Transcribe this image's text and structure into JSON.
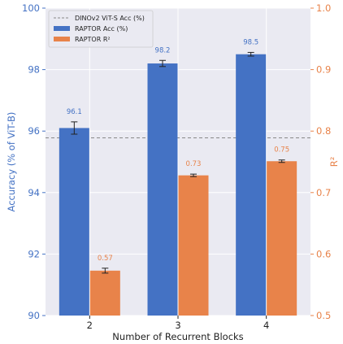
{
  "chart_data": {
    "type": "bar",
    "categories": [
      "2",
      "3",
      "4"
    ],
    "xlabel": "Number of Recurrent Blocks",
    "ylabel_left": "Accuracy (% of ViT-B)",
    "ylabel_right": "R²",
    "ylim_left": [
      90,
      100
    ],
    "ylim_right": [
      0.5,
      1.0
    ],
    "yticks_left": [
      "90",
      "92",
      "94",
      "96",
      "98",
      "100"
    ],
    "yticks_right": [
      "0.5",
      "0.6",
      "0.7",
      "0.8",
      "0.9",
      "1.0"
    ],
    "grid": true,
    "legend_position": "top-left",
    "series": [
      {
        "name": "RAPTOR Acc (%)",
        "axis": "left",
        "color": "#4472C4",
        "values": [
          96.1,
          98.2,
          98.5
        ],
        "labels": [
          "96.1",
          "98.2",
          "98.5"
        ],
        "errors": [
          0.2,
          0.1,
          0.06
        ]
      },
      {
        "name": "RAPTOR R²",
        "axis": "right",
        "color": "#E8834A",
        "values": [
          0.573,
          0.728,
          0.751
        ],
        "labels": [
          "0.57",
          "0.73",
          "0.75"
        ],
        "errors": [
          0.004,
          0.002,
          0.002
        ]
      }
    ],
    "reference_line": {
      "name": "DINOv2 ViT-S Acc (%)",
      "axis": "left",
      "value": 95.78,
      "color": "#888888"
    }
  }
}
